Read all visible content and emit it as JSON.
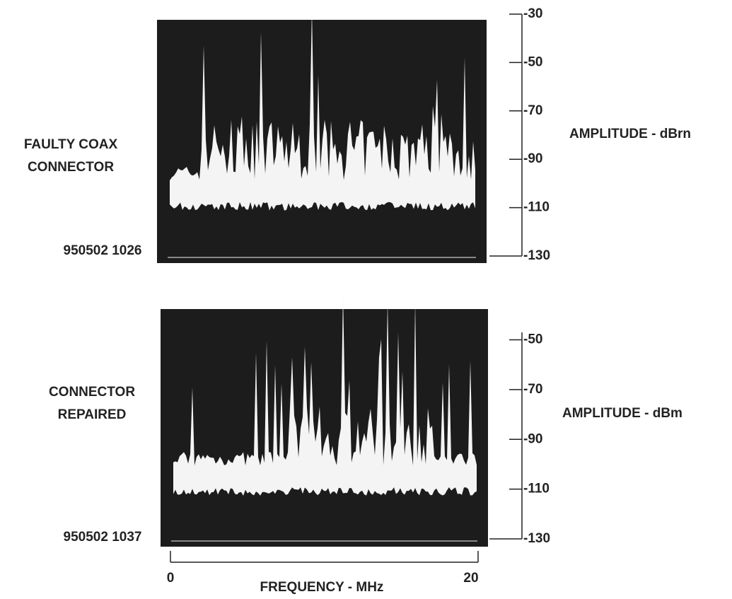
{
  "chart_data": [
    {
      "type": "spectrum",
      "label_lines": [
        "FAULTY COAX",
        "CONNECTOR"
      ],
      "timestamp": "950502 1026",
      "ylabel": "AMPLITUDE - dBrn",
      "ylim": [
        -130,
        -30
      ],
      "yticks": [
        -30,
        -50,
        -70,
        -90,
        -110,
        -130
      ]
    },
    {
      "type": "spectrum",
      "label_lines": [
        "CONNECTOR",
        "REPAIRED"
      ],
      "timestamp": "950502 1037",
      "ylabel": "AMPLITUDE - dBm",
      "ylim": [
        -130,
        -47
      ],
      "yticks": [
        -50,
        -70,
        -90,
        -110,
        -130
      ],
      "xlabel": "FREQUENCY - MHz",
      "xlim": [
        0,
        20
      ],
      "xticks": [
        0,
        20
      ]
    }
  ]
}
